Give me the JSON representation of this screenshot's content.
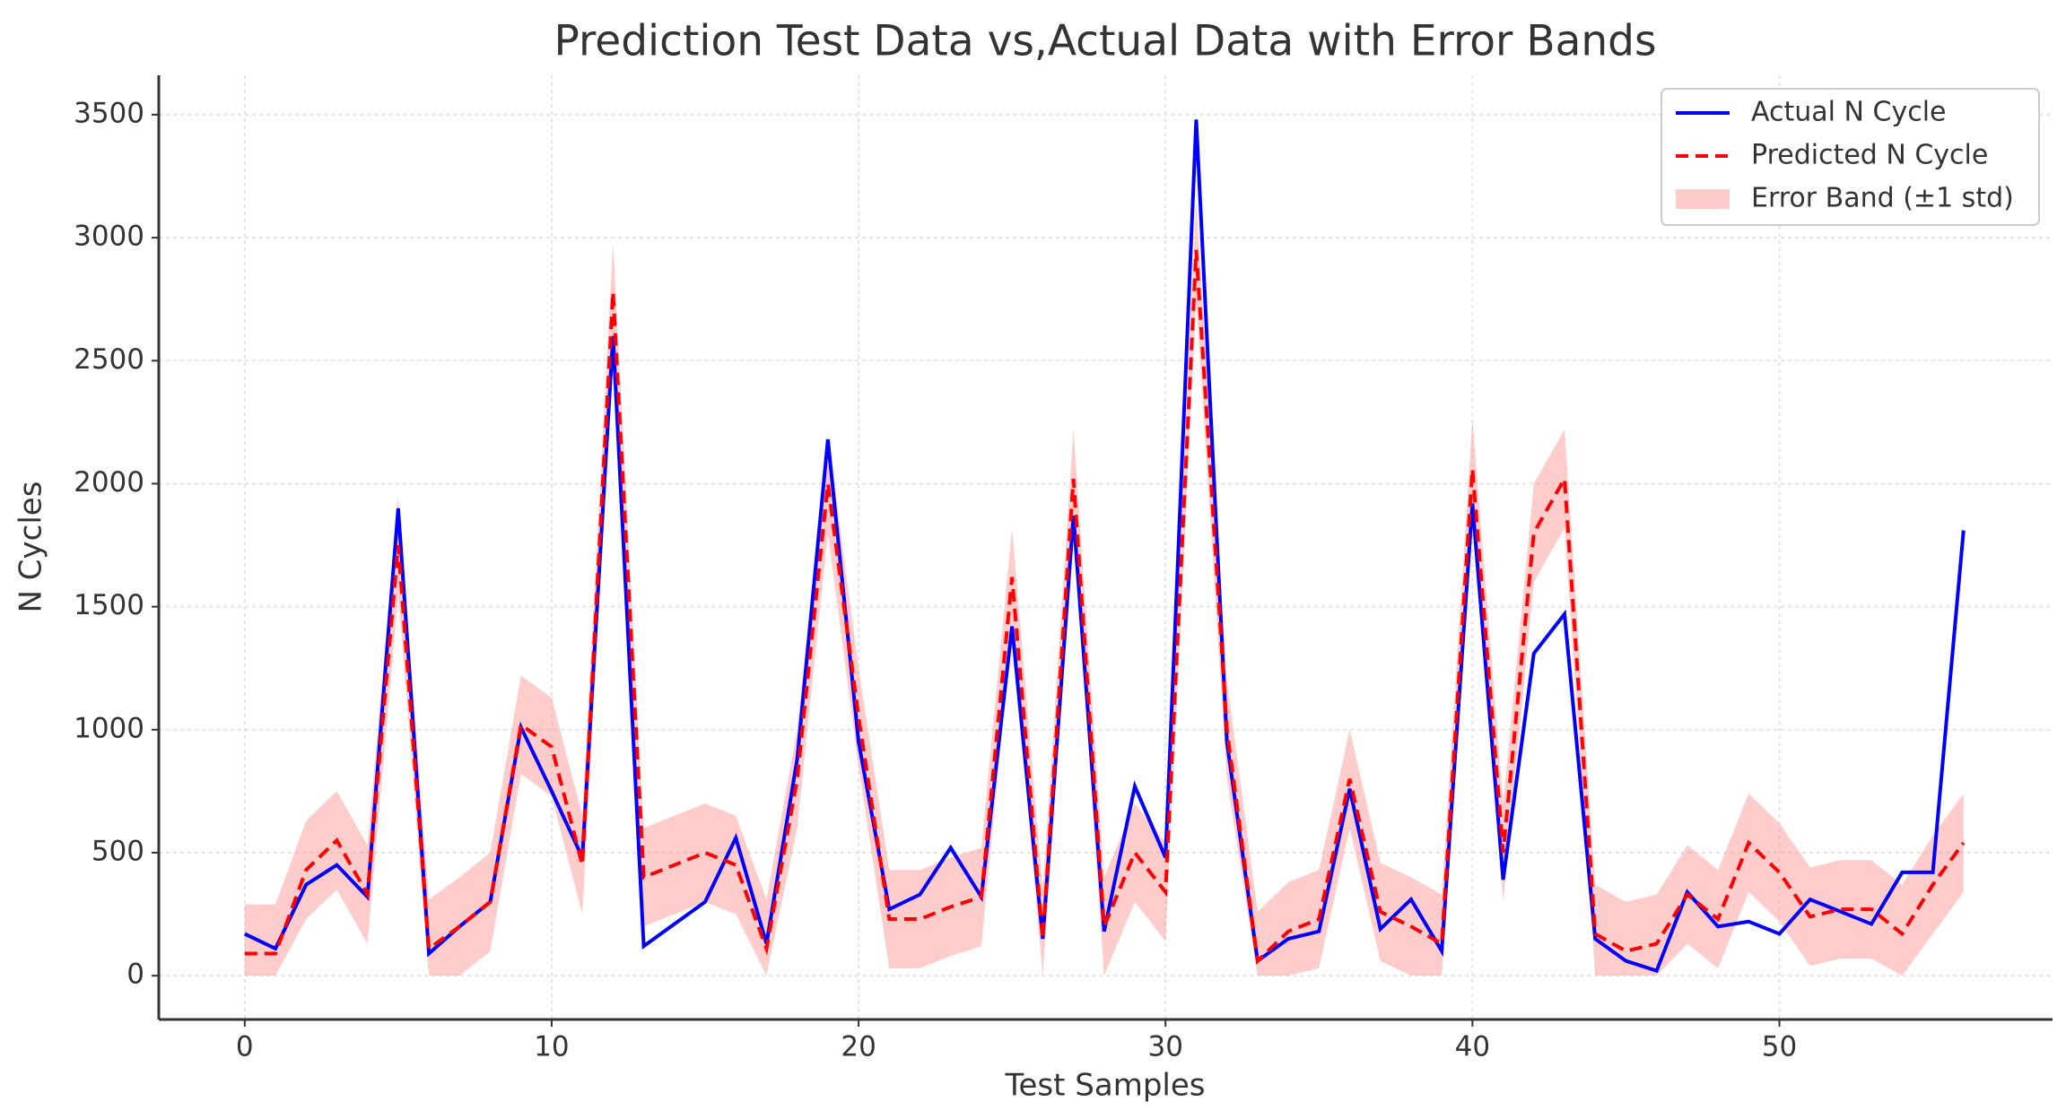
{
  "chart_data": {
    "type": "line",
    "title": "Prediction Test Data vs,Actual Data with Error Bands",
    "x_label": "Test Samples",
    "y_label": "N Cycles",
    "x": [
      0,
      1,
      2,
      3,
      4,
      5,
      6,
      7,
      8,
      9,
      10,
      11,
      12,
      13,
      14,
      15,
      16,
      17,
      18,
      19,
      20,
      21,
      22,
      23,
      24,
      25,
      26,
      27,
      28,
      29,
      30,
      31,
      32,
      33,
      34,
      35,
      36,
      37,
      38,
      39,
      40,
      41,
      42,
      43,
      44,
      45,
      46,
      47,
      48,
      49,
      50,
      51,
      52,
      53,
      54,
      55,
      56
    ],
    "series": [
      {
        "name": "Actual N Cycle",
        "color": "#0000ff",
        "dashed": false,
        "values": [
          170,
          110,
          370,
          450,
          320,
          1900,
          90,
          200,
          300,
          1010,
          750,
          480,
          2600,
          120,
          210,
          300,
          560,
          130,
          880,
          2180,
          950,
          270,
          330,
          520,
          320,
          1420,
          150,
          1870,
          180,
          770,
          480,
          3480,
          950,
          60,
          150,
          180,
          760,
          190,
          310,
          100,
          1920,
          390,
          1310,
          1470,
          150,
          60,
          20,
          340,
          200,
          220,
          170,
          310,
          260,
          210,
          420,
          420,
          1810
        ]
      },
      {
        "name": "Predicted N Cycle",
        "color": "#ff0000",
        "dashed": true,
        "values": [
          90,
          90,
          430,
          550,
          330,
          1750,
          110,
          200,
          300,
          1020,
          930,
          450,
          2780,
          400,
          450,
          500,
          450,
          110,
          800,
          2000,
          1050,
          230,
          230,
          280,
          320,
          1620,
          150,
          2020,
          200,
          500,
          340,
          2950,
          1000,
          60,
          180,
          230,
          800,
          260,
          200,
          130,
          2060,
          500,
          1800,
          2020,
          170,
          100,
          130,
          330,
          230,
          540,
          420,
          240,
          270,
          270,
          170,
          370,
          540
        ]
      }
    ],
    "band": {
      "name": "Error Band (±1 std)",
      "color": "#ff9999",
      "upper": [
        290,
        290,
        630,
        750,
        530,
        1950,
        310,
        400,
        500,
        1220,
        1130,
        650,
        2980,
        600,
        650,
        700,
        650,
        310,
        1000,
        2200,
        1250,
        430,
        430,
        480,
        520,
        1820,
        350,
        2220,
        400,
        700,
        540,
        3150,
        1200,
        260,
        380,
        430,
        1000,
        460,
        400,
        330,
        2260,
        700,
        2000,
        2220,
        370,
        300,
        330,
        530,
        430,
        740,
        620,
        440,
        470,
        470,
        370,
        570,
        740
      ],
      "lower": [
        0,
        0,
        230,
        350,
        130,
        1550,
        0,
        0,
        100,
        820,
        730,
        250,
        2580,
        200,
        250,
        300,
        250,
        0,
        600,
        1800,
        850,
        30,
        30,
        80,
        120,
        1420,
        0,
        1820,
        0,
        300,
        140,
        2750,
        800,
        0,
        0,
        30,
        600,
        60,
        0,
        0,
        1860,
        300,
        1600,
        1820,
        0,
        0,
        0,
        130,
        30,
        340,
        220,
        40,
        70,
        70,
        0,
        170,
        340
      ]
    },
    "xlim": [
      -2.8,
      58.9
    ],
    "ylim": [
      -178,
      3660
    ],
    "xticks": [
      0,
      10,
      20,
      30,
      40,
      50
    ],
    "yticks": [
      0,
      500,
      1000,
      1500,
      2000,
      2500,
      3000,
      3500
    ],
    "grid": true,
    "legend": "upper right"
  }
}
